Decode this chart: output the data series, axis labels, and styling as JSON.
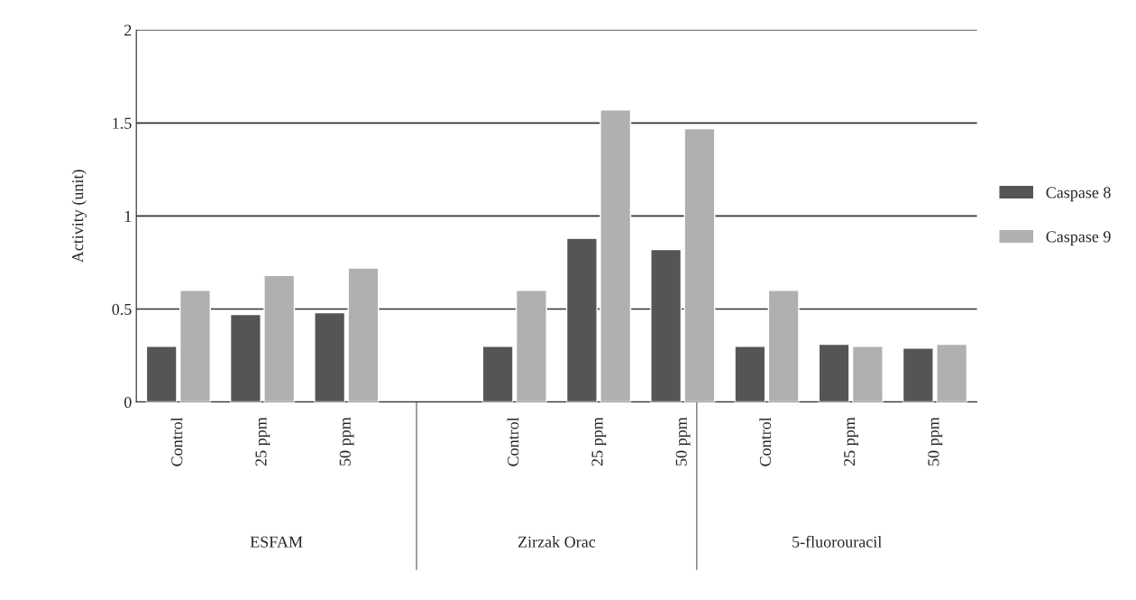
{
  "chart_data": {
    "type": "bar",
    "ylabel": "Activity (unit)",
    "categories": [
      "Control",
      "25 ppm",
      "50 ppm",
      null,
      "Control",
      "25 ppm",
      "50 ppm",
      "Control",
      "25 ppm",
      "50 ppm"
    ],
    "series": [
      {
        "name": "Caspase 8",
        "color": "#555555",
        "values": [
          0.3,
          0.47,
          0.48,
          null,
          0.3,
          0.88,
          0.82,
          0.3,
          0.31,
          0.29
        ]
      },
      {
        "name": "Caspase 9",
        "color": "#b0b0b0",
        "values": [
          0.6,
          0.68,
          0.72,
          null,
          0.6,
          1.57,
          1.47,
          0.6,
          0.3,
          0.31
        ]
      }
    ],
    "annotations": [
      "ESFAM",
      "Zirzak Orac",
      "5-fluorouracil"
    ],
    "ylim": [
      0,
      2
    ],
    "yticks": [
      0,
      0.5,
      1,
      1.5,
      2
    ],
    "grid": "y",
    "legend": "right"
  }
}
